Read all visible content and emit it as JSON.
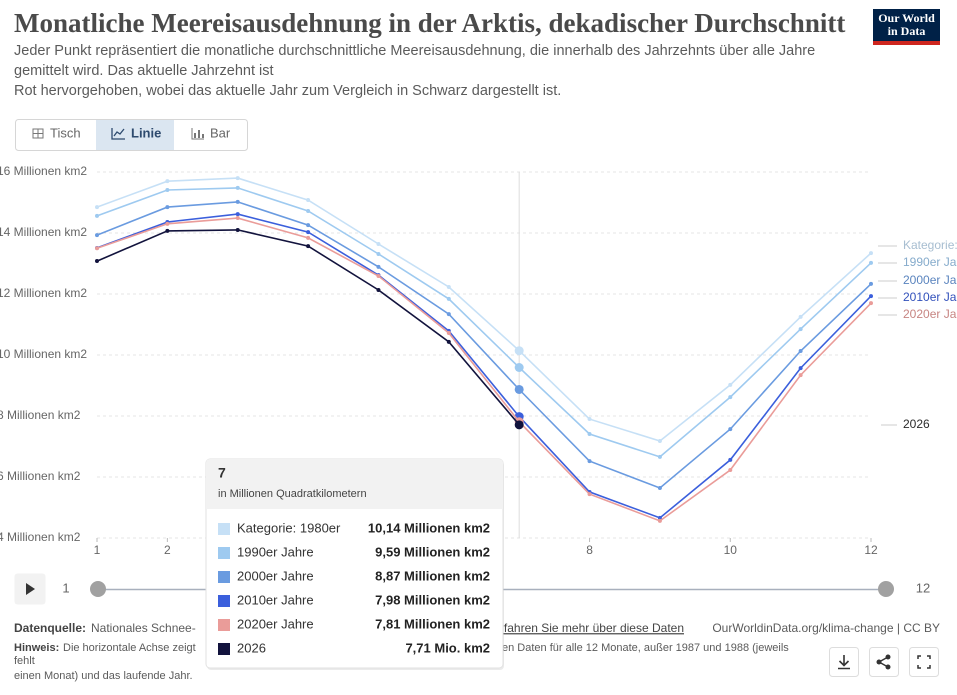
{
  "header": {
    "title": "Monatliche Meereisausdehnung in der Arktis, dekadischer Durchschnitt",
    "subtitle": [
      "Jeder Punkt repräsentiert die monatliche durchschnittliche Meereisausdehnung, die innerhalb des Jahrzehnts über alle Jahre",
      "gemittelt wird. Das aktuelle Jahrzehnt ist",
      "Rot hervorgehoben, wobei das aktuelle Jahr zum Vergleich in Schwarz dargestellt ist."
    ],
    "logo": [
      "Our World",
      "in Data"
    ]
  },
  "tabs": [
    "Tisch",
    "Linie",
    "Bar"
  ],
  "chart_data": {
    "type": "line",
    "x": [
      1,
      2,
      3,
      4,
      5,
      6,
      7,
      8,
      9,
      10,
      11,
      12
    ],
    "xlim": [
      1,
      12
    ],
    "xticks": [
      1,
      2,
      8,
      10,
      12
    ],
    "ylim": [
      4,
      16
    ],
    "yticks": [
      {
        "value": 4,
        "label": "4 Millionen km2"
      },
      {
        "value": 6,
        "label": "6 Millionen km2"
      },
      {
        "value": 8,
        "label": "8 Millionen km2"
      },
      {
        "value": 10,
        "label": "10 Millionen km2"
      },
      {
        "value": 12,
        "label": "12 Millionen km2"
      },
      {
        "value": 14,
        "label": "14 Millionen km2"
      },
      {
        "value": 16,
        "label": "16 Millionen km2"
      }
    ],
    "grid": true,
    "series": [
      {
        "name": "Kategorie: 1980er",
        "color": "#c6e0f6",
        "values": [
          14.85,
          15.7,
          15.8,
          15.08,
          13.64,
          12.23,
          10.14,
          7.9,
          7.18,
          9.02,
          11.25,
          13.34
        ]
      },
      {
        "name": "1990er Jahre",
        "color": "#9ecaf0",
        "values": [
          14.56,
          15.41,
          15.48,
          14.72,
          13.31,
          11.84,
          9.59,
          7.41,
          6.66,
          8.62,
          10.85,
          13.02
        ]
      },
      {
        "name": "2000er Jahre",
        "color": "#6a9be0",
        "values": [
          13.93,
          14.85,
          15.02,
          14.26,
          12.89,
          11.34,
          8.87,
          6.52,
          5.64,
          7.57,
          10.13,
          12.33
        ]
      },
      {
        "name": "2010er Jahre",
        "color": "#3b5fdc",
        "values": [
          13.51,
          14.36,
          14.62,
          14.03,
          12.62,
          10.79,
          7.98,
          5.51,
          4.66,
          6.56,
          9.57,
          11.93
        ]
      },
      {
        "name": "2020er Jahre",
        "color": "#ea9c99",
        "values": [
          13.5,
          14.3,
          14.49,
          13.84,
          12.59,
          10.72,
          7.81,
          5.44,
          4.56,
          6.23,
          9.34,
          11.7
        ]
      },
      {
        "name": "2026",
        "color": "#12133d",
        "values": [
          13.08,
          14.07,
          14.1,
          13.57,
          12.13,
          10.43,
          7.71,
          null,
          null,
          null,
          null,
          null
        ]
      }
    ],
    "tooltip": {
      "x": 7,
      "subtitle": "in Millionen Quadratkilometern",
      "value_labels": [
        "10,14 Millionen km2",
        "9,59 Millionen km2",
        "8,87 Millionen km2",
        "7,98 Millionen km2",
        "7,81 Millionen km2",
        "7,71 Mio. km2"
      ]
    }
  },
  "timeline": {
    "start": 1,
    "end": 12
  },
  "footer": {
    "source_label": "Datenquelle:",
    "source": "Nationales Schnee-",
    "link": "Erfahren Sie mehr über diese Daten",
    "credit": "OurWorldinData.org/klima-change | CC BY",
    "note_label": "Hinweis:",
    "note_start": "Die horizontale Achse zeigt",
    "note_end": "en Daten für alle 12 Monate, außer 1987 und 1988 (jeweils",
    "note_line2": "fehlt",
    "note_line3": "einen Monat) und das laufende Jahr."
  }
}
